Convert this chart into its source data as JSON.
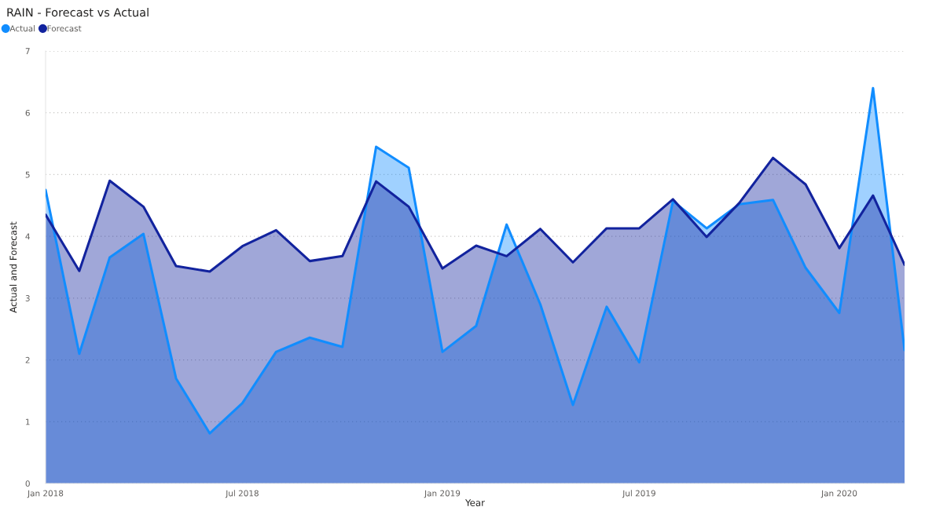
{
  "chart_data": {
    "type": "area",
    "title": "RAIN - Forecast vs Actual",
    "xlabel": "Year",
    "ylabel": "Actual and Forecast",
    "x": [
      "2018-01",
      "2018-02",
      "2018-03",
      "2018-04",
      "2018-05",
      "2018-06",
      "2018-07",
      "2018-08",
      "2018-09",
      "2018-10",
      "2018-11",
      "2018-12",
      "2019-01",
      "2019-02",
      "2019-03",
      "2019-04",
      "2019-05",
      "2019-06",
      "2019-07",
      "2019-08",
      "2019-09",
      "2019-10",
      "2019-11",
      "2019-12",
      "2020-01",
      "2020-02",
      "2020-03"
    ],
    "series": [
      {
        "name": "Actual",
        "color": "#118dff",
        "values": [
          4.75,
          2.1,
          3.66,
          4.04,
          1.7,
          0.81,
          1.3,
          2.13,
          2.36,
          2.21,
          5.45,
          5.11,
          2.13,
          2.55,
          4.19,
          2.9,
          1.27,
          2.86,
          1.96,
          4.57,
          4.13,
          4.52,
          4.59,
          3.49,
          2.76,
          6.4,
          2.16
        ]
      },
      {
        "name": "Forecast",
        "color": "#12239e",
        "values": [
          4.35,
          3.44,
          4.9,
          4.48,
          3.52,
          3.43,
          3.84,
          4.1,
          3.6,
          3.68,
          4.89,
          4.48,
          3.48,
          3.85,
          3.68,
          4.12,
          3.58,
          4.13,
          4.13,
          4.6,
          3.99,
          4.54,
          5.27,
          4.84,
          3.81,
          4.66,
          3.54
        ]
      }
    ],
    "xlim": [
      "2018-01",
      "2020-03"
    ],
    "xticks": [
      {
        "value": "2018-01",
        "label": "Jan 2018"
      },
      {
        "value": "2018-07",
        "label": "Jul 2018"
      },
      {
        "value": "2019-01",
        "label": "Jan 2019"
      },
      {
        "value": "2019-07",
        "label": "Jul 2019"
      },
      {
        "value": "2020-01",
        "label": "Jan 2020"
      }
    ],
    "ylim": [
      0,
      7
    ],
    "yticks": [
      0,
      1,
      2,
      3,
      4,
      5,
      6,
      7
    ],
    "grid": "y",
    "legend": "top left"
  }
}
